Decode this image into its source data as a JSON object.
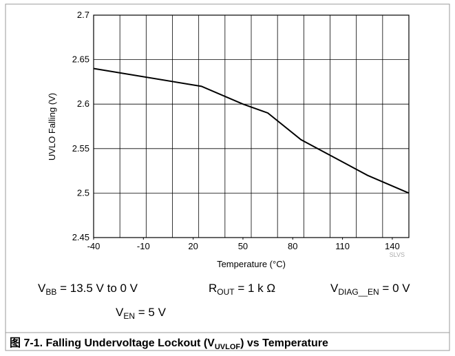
{
  "chart_data": {
    "type": "line",
    "x_label": "Temperature (°C)",
    "y_label": "UVLO Falling (V)",
    "x": [
      -40,
      25,
      50,
      65,
      85,
      125,
      150
    ],
    "series": [
      {
        "name": "UVLO Falling",
        "color": "#000000",
        "values": [
          2.64,
          2.62,
          2.6,
          2.59,
          2.56,
          2.52,
          2.5
        ]
      }
    ],
    "xlim": [
      -40,
      150
    ],
    "xticks": [
      -40,
      -10,
      20,
      50,
      80,
      110,
      140
    ],
    "ylim": [
      2.45,
      2.7
    ],
    "yticks": [
      2.45,
      2.5,
      2.55,
      2.6,
      2.65,
      2.7
    ],
    "grid": true,
    "watermark": "SLVS",
    "conditions": [
      {
        "main": "V",
        "sub": "BB",
        "rest": " = 13.5 V to 0 V"
      },
      {
        "main": "R",
        "sub": "OUT",
        "rest": " = 1 k Ω"
      },
      {
        "main": "V",
        "sub": "DIAG__EN",
        "rest": " = 0 V"
      },
      {
        "main": "V",
        "sub": "EN",
        "rest": " = 5 V"
      }
    ],
    "caption": {
      "main": "图 7-1. Falling Undervoltage Lockout (V",
      "sub": "UVLOF",
      "rest": ") vs Temperature"
    }
  }
}
